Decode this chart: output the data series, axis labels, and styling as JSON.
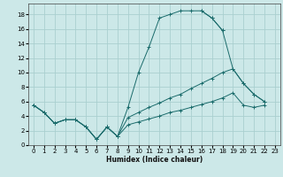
{
  "xlabel": "Humidex (Indice chaleur)",
  "bg_color": "#cce8e8",
  "grid_color": "#aacfcf",
  "line_color": "#1a6b6b",
  "xlim": [
    -0.5,
    23.5
  ],
  "ylim": [
    0,
    19.5
  ],
  "xticks": [
    0,
    1,
    2,
    3,
    4,
    5,
    6,
    7,
    8,
    9,
    10,
    11,
    12,
    13,
    14,
    15,
    16,
    17,
    18,
    19,
    20,
    21,
    22,
    23
  ],
  "yticks": [
    0,
    2,
    4,
    6,
    8,
    10,
    12,
    14,
    16,
    18
  ],
  "curve1_x": [
    0,
    1,
    2,
    3,
    4,
    5,
    6,
    7,
    8,
    9,
    10,
    11,
    12,
    13,
    14,
    15,
    16,
    17,
    18
  ],
  "curve1_y": [
    5.5,
    4.5,
    3.0,
    3.5,
    3.5,
    2.5,
    0.8,
    2.5,
    1.2,
    5.2,
    10.0,
    13.5,
    17.5,
    18.0,
    18.5,
    18.5,
    18.5,
    17.5,
    15.8
  ],
  "curve2_x": [
    16,
    17,
    18,
    19,
    20,
    21,
    22
  ],
  "curve2_y": [
    18.5,
    17.5,
    15.8,
    10.5,
    8.5,
    7.0,
    6.0
  ],
  "curve3_x": [
    0,
    1,
    2,
    3,
    4,
    5,
    6,
    7,
    8,
    9,
    10,
    11,
    12,
    13,
    14,
    15,
    16,
    17,
    18,
    19,
    20,
    21,
    22
  ],
  "curve3_y": [
    5.5,
    4.5,
    3.0,
    3.5,
    3.5,
    2.5,
    0.8,
    2.5,
    1.2,
    3.8,
    4.5,
    5.2,
    5.8,
    6.5,
    7.0,
    7.8,
    8.5,
    9.2,
    10.0,
    10.5,
    8.5,
    7.0,
    6.0
  ],
  "curve4_x": [
    0,
    1,
    2,
    3,
    4,
    5,
    6,
    7,
    8,
    9,
    10,
    11,
    12,
    13,
    14,
    15,
    16,
    17,
    18,
    19,
    20,
    21,
    22
  ],
  "curve4_y": [
    5.5,
    4.5,
    3.0,
    3.5,
    3.5,
    2.5,
    0.8,
    2.5,
    1.2,
    2.8,
    3.2,
    3.6,
    4.0,
    4.5,
    4.8,
    5.2,
    5.6,
    6.0,
    6.5,
    7.2,
    5.5,
    5.2,
    5.5
  ]
}
